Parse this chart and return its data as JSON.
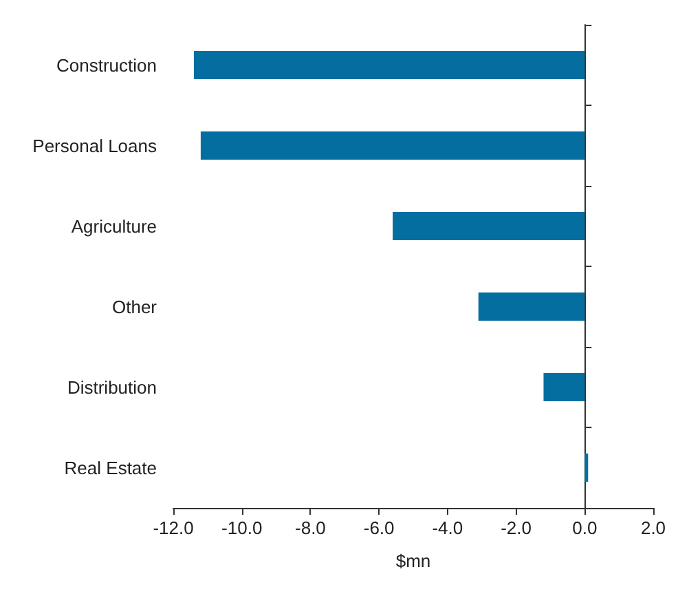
{
  "chart_data": {
    "type": "bar",
    "orientation": "horizontal",
    "xlabel": "$mn",
    "categories": [
      "Construction",
      "Personal Loans",
      "Agriculture",
      "Other",
      "Distribution",
      "Real Estate"
    ],
    "values": [
      -11.4,
      -11.2,
      -5.6,
      -3.1,
      -1.2,
      0.1
    ],
    "color": "#056ea0",
    "xlim": [
      -12,
      2
    ],
    "xticks": [
      {
        "value": -12,
        "label": "-12.0"
      },
      {
        "value": -10,
        "label": "-10.0"
      },
      {
        "value": -8,
        "label": "-8.0"
      },
      {
        "value": -6,
        "label": "-6.0"
      },
      {
        "value": -4,
        "label": "-4.0"
      },
      {
        "value": -2,
        "label": "-2.0"
      },
      {
        "value": 0,
        "label": "0.0"
      },
      {
        "value": 2,
        "label": "2.0"
      }
    ],
    "data_labels": false
  }
}
